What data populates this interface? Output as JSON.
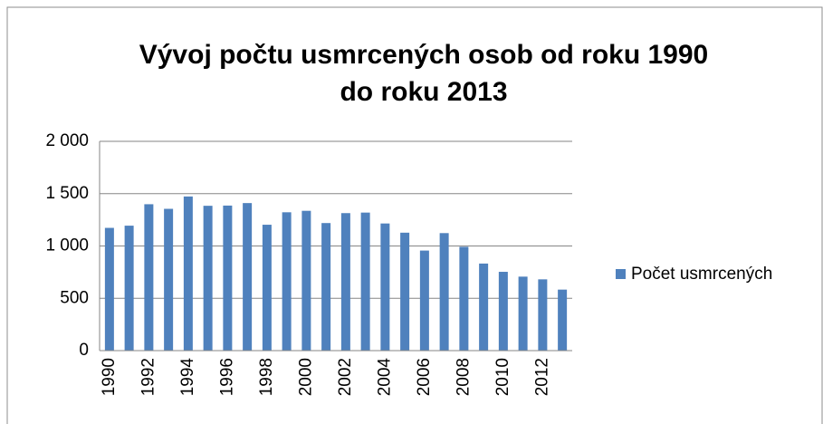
{
  "chart_data": {
    "type": "bar",
    "title": [
      "Vývoj počtu usmrcených osob od roku 1990",
      "do roku 2013"
    ],
    "categories": [
      "1990",
      null,
      "1992",
      null,
      "1994",
      null,
      "1996",
      null,
      "1998",
      null,
      "2000",
      null,
      "2002",
      null,
      "2004",
      null,
      "2006",
      null,
      "2008",
      null,
      "2010",
      null,
      "2012",
      null
    ],
    "series": [
      {
        "name": "Počet usmrcených",
        "color": "#4f81bd",
        "values": [
          1173,
          1194,
          1399,
          1355,
          1473,
          1384,
          1386,
          1410,
          1203,
          1322,
          1336,
          1219,
          1314,
          1319,
          1215,
          1127,
          956,
          1123,
          992,
          832,
          753,
          707,
          681,
          583
        ]
      }
    ],
    "ylim": [
      0,
      2000
    ],
    "yticks": [
      0,
      500,
      {
        "value": 1000,
        "label": "1 000"
      },
      {
        "value": 1500,
        "label": "1 500"
      },
      {
        "value": 2000,
        "label": "2 000"
      }
    ],
    "grid": true,
    "legend": "right"
  }
}
